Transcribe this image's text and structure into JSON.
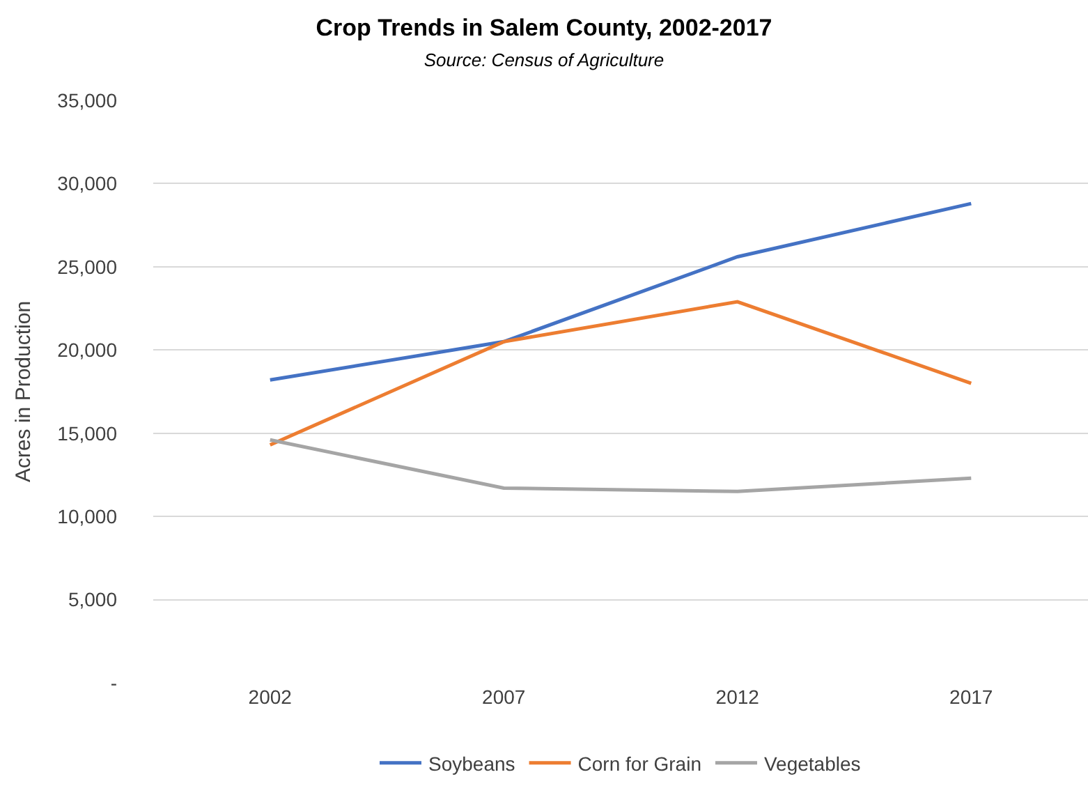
{
  "chart_data": {
    "type": "line",
    "title": "Crop Trends in Salem County, 2002-2017",
    "subtitle": "Source: Census of Agriculture",
    "ylabel": "Acres in Production",
    "categories": [
      "2002",
      "2007",
      "2012",
      "2017"
    ],
    "series": [
      {
        "name": "Soybeans",
        "color": "#4472c4",
        "values": [
          18200,
          20500,
          25600,
          28800
        ]
      },
      {
        "name": "Corn for Grain",
        "color": "#ed7d31",
        "values": [
          14300,
          20500,
          22900,
          18000
        ]
      },
      {
        "name": "Vegetables",
        "color": "#a5a5a5",
        "values": [
          14600,
          11700,
          11500,
          12300
        ]
      }
    ],
    "ylim": [
      0,
      35000
    ],
    "yticks": [
      {
        "value": 0,
        "label": "-"
      },
      {
        "value": 5000,
        "label": "5,000"
      },
      {
        "value": 10000,
        "label": "10,000"
      },
      {
        "value": 15000,
        "label": "15,000"
      },
      {
        "value": 20000,
        "label": "20,000"
      },
      {
        "value": 25000,
        "label": "25,000"
      },
      {
        "value": 30000,
        "label": "30,000"
      },
      {
        "value": 35000,
        "label": "35,000"
      }
    ],
    "grid": "y",
    "legend": "bottom",
    "marker": "none",
    "line_style": "solid"
  }
}
